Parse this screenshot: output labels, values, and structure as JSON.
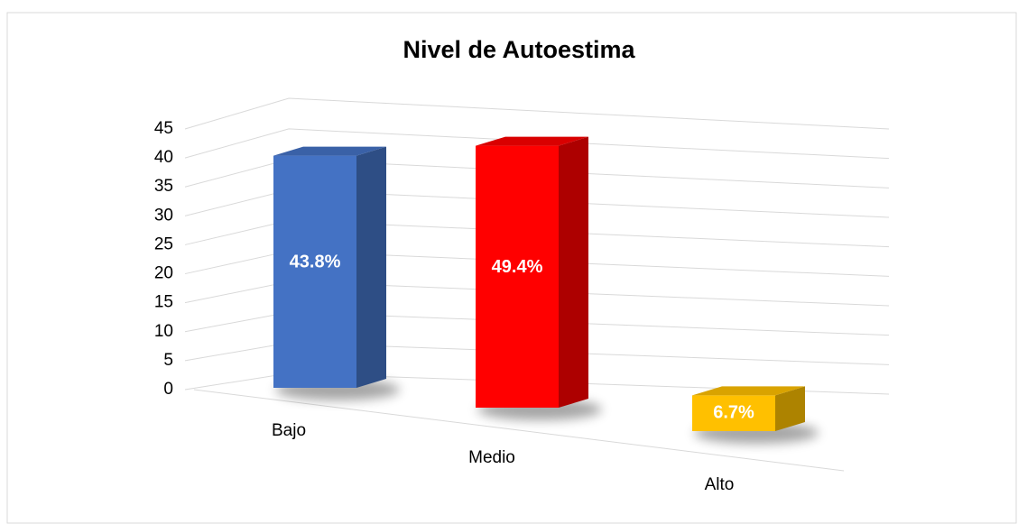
{
  "chart_data": {
    "type": "bar3d",
    "title": "Nivel de Autoestima",
    "categories": [
      "Bajo",
      "Medio",
      "Alto"
    ],
    "values": [
      39,
      44,
      6
    ],
    "value_labels": [
      "43.8%",
      "49.4%",
      "6.7%"
    ],
    "colors": [
      "#4472c4",
      "#ff0000",
      "#ffc000"
    ],
    "ylim": [
      0,
      45
    ],
    "yticks": [
      0,
      5,
      10,
      15,
      20,
      25,
      30,
      35,
      40,
      45
    ],
    "grid": true
  }
}
